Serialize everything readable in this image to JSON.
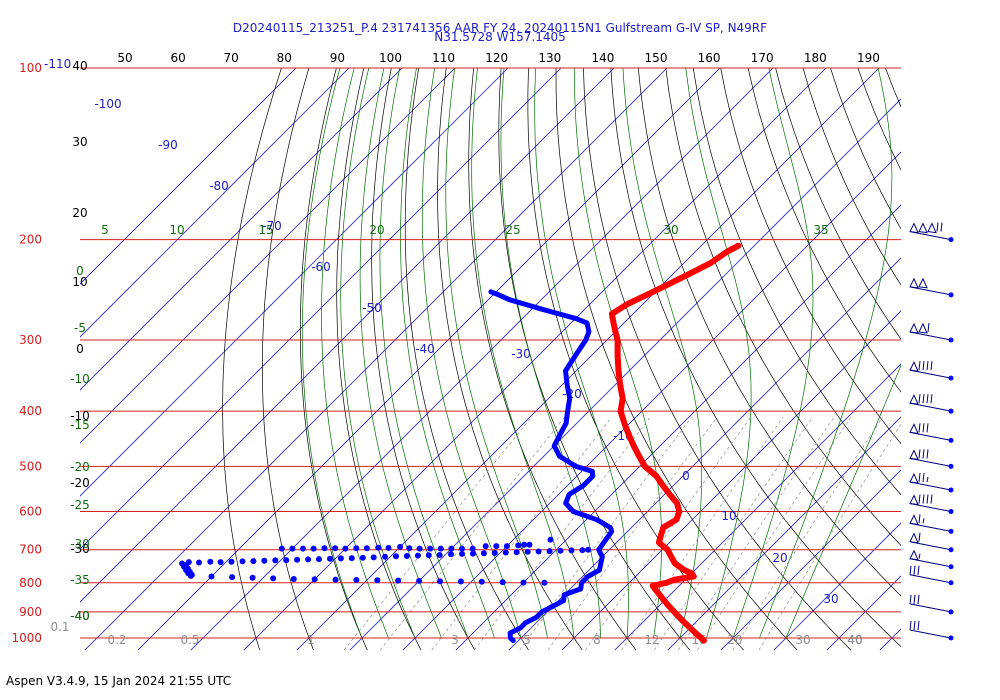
{
  "header": {
    "line1": "D20240115_213251_P.4 231741356 AAR FY 24, 20240115N1 Gulfstream G-IV SP, N49RF",
    "line2": "N31.5728 W157.1405"
  },
  "footer": {
    "text": "Aspen V3.4.9, 15 Jan 2024  21:55 UTC"
  },
  "colors": {
    "isobar": "#d42020",
    "dry_adiabat": "#000000",
    "isotherm": "#2020c8",
    "moist_adiabat": "#007000",
    "mixing_ratio": "#909090",
    "temperature": "#ff0000",
    "dewpoint": "#0000ff",
    "pressure_label": "#d42020",
    "temp_label": "#2020c8",
    "theta_label": "#000000",
    "thetaw_label": "#107010",
    "mixratio_label": "#909090"
  },
  "chart_data": {
    "type": "skew-t",
    "pressure_labels": [
      {
        "p": 100,
        "text": "100"
      },
      {
        "p": 200,
        "text": "200"
      },
      {
        "p": 300,
        "text": "300"
      },
      {
        "p": 400,
        "text": "400"
      },
      {
        "p": 500,
        "text": "500"
      },
      {
        "p": 600,
        "text": "600"
      },
      {
        "p": 700,
        "text": "700"
      },
      {
        "p": 800,
        "text": "800"
      },
      {
        "p": 900,
        "text": "900"
      },
      {
        "p": 1000,
        "text": "1000"
      }
    ],
    "top_isotherm_label": "-110",
    "top_theta_labels": [
      "50",
      "60",
      "70",
      "80",
      "90",
      "100",
      "110",
      "120",
      "130",
      "140",
      "150",
      "160",
      "170",
      "180",
      "190"
    ],
    "left_theta_labels": [
      "40",
      "30",
      "20",
      "10",
      "0",
      "-10",
      "-20",
      "-30",
      "-40"
    ],
    "left_thetaw_labels": [
      "0",
      "-5",
      "-10",
      "-15",
      "-20",
      "-25",
      "-30",
      "-35",
      "-40"
    ],
    "moist_labels_200": [
      "5",
      "10",
      "15",
      "20",
      "25",
      "30",
      "35"
    ],
    "isotherm_labels": [
      "-100",
      "-90",
      "-80",
      "-70",
      "-60",
      "-50",
      "-40",
      "-30",
      "-20",
      "-10",
      "0",
      "10",
      "20",
      "30",
      "40"
    ],
    "mixing_ratio_labels": [
      "0.1",
      "0.2",
      "0.5",
      "1",
      "2",
      "3",
      "5",
      "8",
      "12",
      "16",
      "20",
      "30",
      "40"
    ],
    "temperature_profile": [
      [
        205,
        -43
      ],
      [
        210,
        -44
      ],
      [
        220,
        -45
      ],
      [
        230,
        -47
      ],
      [
        240,
        -49
      ],
      [
        250,
        -51
      ],
      [
        260,
        -53
      ],
      [
        270,
        -54
      ],
      [
        280,
        -52
      ],
      [
        290,
        -50
      ],
      [
        300,
        -48
      ],
      [
        320,
        -45
      ],
      [
        340,
        -42
      ],
      [
        360,
        -39
      ],
      [
        380,
        -36
      ],
      [
        400,
        -34
      ],
      [
        420,
        -31
      ],
      [
        440,
        -28
      ],
      [
        460,
        -25
      ],
      [
        480,
        -22
      ],
      [
        500,
        -19
      ],
      [
        520,
        -15
      ],
      [
        540,
        -12
      ],
      [
        560,
        -9
      ],
      [
        580,
        -6
      ],
      [
        600,
        -4
      ],
      [
        620,
        -3
      ],
      [
        640,
        -4
      ],
      [
        660,
        -3
      ],
      [
        680,
        -2
      ],
      [
        700,
        1
      ],
      [
        720,
        3
      ],
      [
        740,
        5
      ],
      [
        760,
        8
      ],
      [
        770,
        10
      ],
      [
        780,
        11
      ],
      [
        790,
        8
      ],
      [
        800,
        7
      ],
      [
        810,
        5
      ],
      [
        820,
        6
      ],
      [
        840,
        8
      ],
      [
        860,
        10
      ],
      [
        880,
        12
      ],
      [
        900,
        14
      ],
      [
        920,
        16
      ],
      [
        940,
        18
      ],
      [
        960,
        20
      ],
      [
        980,
        22
      ],
      [
        1000,
        24
      ],
      [
        1010,
        25
      ]
    ],
    "dewpoint_profile": [
      [
        247,
        -81
      ],
      [
        250,
        -79
      ],
      [
        255,
        -76
      ],
      [
        260,
        -72
      ],
      [
        265,
        -68
      ],
      [
        270,
        -64
      ],
      [
        275,
        -60
      ],
      [
        280,
        -57
      ],
      [
        290,
        -55
      ],
      [
        300,
        -54
      ],
      [
        320,
        -53
      ],
      [
        340,
        -52
      ],
      [
        360,
        -49
      ],
      [
        380,
        -46
      ],
      [
        400,
        -44
      ],
      [
        420,
        -42
      ],
      [
        440,
        -41
      ],
      [
        460,
        -40
      ],
      [
        480,
        -37
      ],
      [
        500,
        -32
      ],
      [
        510,
        -28
      ],
      [
        520,
        -27
      ],
      [
        540,
        -27
      ],
      [
        560,
        -28
      ],
      [
        580,
        -27
      ],
      [
        600,
        -24
      ],
      [
        620,
        -18
      ],
      [
        640,
        -14
      ],
      [
        650,
        -13
      ],
      [
        700,
        -12
      ],
      [
        720,
        -10
      ],
      [
        740,
        -9
      ],
      [
        760,
        -8
      ],
      [
        780,
        -9
      ],
      [
        800,
        -9
      ],
      [
        820,
        -8
      ],
      [
        840,
        -10
      ],
      [
        860,
        -9
      ],
      [
        880,
        -10
      ],
      [
        900,
        -11
      ],
      [
        920,
        -11
      ],
      [
        940,
        -12
      ],
      [
        960,
        -12
      ],
      [
        980,
        -13
      ],
      [
        1000,
        -12
      ],
      [
        1010,
        -11
      ]
    ],
    "dewpoint_scatter_upper": [
      [
        697,
        -72
      ],
      [
        697,
        -70
      ],
      [
        697,
        -68
      ],
      [
        697,
        -66
      ],
      [
        696,
        -64
      ],
      [
        696,
        -62
      ],
      [
        697,
        -60
      ],
      [
        696,
        -58
      ],
      [
        696,
        -56
      ],
      [
        694,
        -54
      ],
      [
        695,
        -52
      ],
      [
        692,
        -50
      ],
      [
        696,
        -48
      ],
      [
        697,
        -46
      ],
      [
        697,
        -44
      ],
      [
        697,
        -42
      ],
      [
        697,
        -40
      ],
      [
        697,
        -38
      ],
      [
        697,
        -36
      ],
      [
        690,
        -34
      ],
      [
        690,
        -32
      ],
      [
        690,
        -30
      ],
      [
        688,
        -28
      ],
      [
        686,
        -27
      ],
      [
        686,
        -26
      ],
      [
        672,
        -23
      ],
      [
        736,
        -87
      ],
      [
        737,
        -85
      ],
      [
        735,
        -83
      ],
      [
        736,
        -81
      ],
      [
        735,
        -79
      ],
      [
        734,
        -77
      ],
      [
        733,
        -75
      ],
      [
        732,
        -73
      ],
      [
        731,
        -71
      ],
      [
        730,
        -69
      ],
      [
        729,
        -67
      ],
      [
        728,
        -65
      ],
      [
        727,
        -63
      ],
      [
        726,
        -61
      ],
      [
        725,
        -59
      ],
      [
        724,
        -57
      ],
      [
        723,
        -55
      ],
      [
        722,
        -53
      ],
      [
        720,
        -51
      ],
      [
        719,
        -49
      ],
      [
        718,
        -47
      ],
      [
        717,
        -45
      ],
      [
        716,
        -43
      ],
      [
        715,
        -41
      ],
      [
        713,
        -39
      ],
      [
        712,
        -37
      ],
      [
        711,
        -35
      ],
      [
        710,
        -33
      ],
      [
        709,
        -31
      ],
      [
        708,
        -29
      ],
      [
        707,
        -27
      ],
      [
        706,
        -25
      ],
      [
        705,
        -23
      ],
      [
        704,
        -21
      ],
      [
        703,
        -19
      ],
      [
        702,
        -17
      ],
      [
        701,
        -15
      ],
      [
        700,
        -14
      ]
    ],
    "dewpoint_scatter_lower": [
      [
        740,
        -88
      ],
      [
        745,
        -87
      ],
      [
        750,
        -87
      ],
      [
        755,
        -86
      ],
      [
        760,
        -86
      ],
      [
        765,
        -85
      ],
      [
        770,
        -85
      ],
      [
        775,
        -84
      ],
      [
        778,
        -84
      ],
      [
        780,
        -80
      ],
      [
        782,
        -76
      ],
      [
        784,
        -72
      ],
      [
        786,
        -68
      ],
      [
        788,
        -64
      ],
      [
        789,
        -60
      ],
      [
        790,
        -56
      ],
      [
        791,
        -52
      ],
      [
        792,
        -48
      ],
      [
        793,
        -44
      ],
      [
        794,
        -40
      ],
      [
        795,
        -36
      ],
      [
        796,
        -32
      ],
      [
        797,
        -28
      ],
      [
        798,
        -24
      ],
      [
        799,
        -20
      ],
      [
        800,
        -16
      ]
    ],
    "wind_barbs": [
      {
        "p": 200,
        "pennants": 3,
        "full": 2,
        "half": 0
      },
      {
        "p": 250,
        "pennants": 2,
        "full": 0,
        "half": 0
      },
      {
        "p": 300,
        "pennants": 2,
        "full": 1,
        "half": 0
      },
      {
        "p": 350,
        "pennants": 1,
        "full": 4,
        "half": 0
      },
      {
        "p": 400,
        "pennants": 1,
        "full": 4,
        "half": 0
      },
      {
        "p": 450,
        "pennants": 1,
        "full": 3,
        "half": 0
      },
      {
        "p": 500,
        "pennants": 1,
        "full": 3,
        "half": 0
      },
      {
        "p": 550,
        "pennants": 1,
        "full": 2,
        "half": 1
      },
      {
        "p": 600,
        "pennants": 1,
        "full": 4,
        "half": 0
      },
      {
        "p": 650,
        "pennants": 1,
        "full": 1,
        "half": 1
      },
      {
        "p": 700,
        "pennants": 1,
        "full": 1,
        "half": 0
      },
      {
        "p": 750,
        "pennants": 1,
        "full": 0,
        "half": 1
      },
      {
        "p": 800,
        "pennants": 0,
        "full": 3,
        "half": 0
      },
      {
        "p": 900,
        "pennants": 0,
        "full": 3,
        "half": 0
      },
      {
        "p": 1000,
        "pennants": 0,
        "full": 3,
        "half": 0
      }
    ]
  }
}
